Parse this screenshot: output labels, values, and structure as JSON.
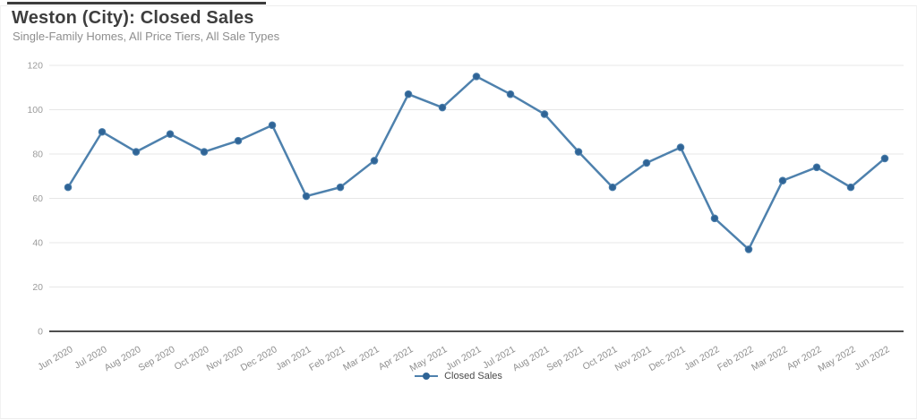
{
  "header": {
    "title": "Weston (City): Closed Sales",
    "subtitle": "Single-Family Homes, All Price Tiers, All Sale Types"
  },
  "legend": {
    "items": [
      {
        "label": "Closed Sales",
        "color": "#4e81ad",
        "marker_color": "#2f6496"
      }
    ]
  },
  "chart_data": {
    "type": "line",
    "title": "Weston (City): Closed Sales",
    "subtitle": "Single-Family Homes, All Price Tiers, All Sale Types",
    "categories": [
      "Jun 2020",
      "Jul 2020",
      "Aug 2020",
      "Sep 2020",
      "Oct 2020",
      "Nov 2020",
      "Dec 2020",
      "Jan 2021",
      "Feb 2021",
      "Mar 2021",
      "Apr 2021",
      "May 2021",
      "Jun 2021",
      "Jul 2021",
      "Aug 2021",
      "Sep 2021",
      "Oct 2021",
      "Nov 2021",
      "Dec 2021",
      "Jan 2022",
      "Feb 2022",
      "Mar 2022",
      "Apr 2022",
      "May 2022",
      "Jun 2022"
    ],
    "series": [
      {
        "name": "Closed Sales",
        "values": [
          65,
          90,
          81,
          89,
          81,
          86,
          93,
          61,
          65,
          77,
          107,
          101,
          115,
          107,
          98,
          81,
          65,
          76,
          83,
          51,
          37,
          68,
          74,
          65,
          78
        ]
      }
    ],
    "ylim": [
      0,
      120
    ],
    "yticks": [
      0,
      20,
      40,
      60,
      80,
      100,
      120
    ],
    "grid": true,
    "legend_position": "bottom",
    "colors": {
      "line": "#4e81ad",
      "marker": "#2f6496",
      "grid": "#e7e7e7",
      "axis": "#4f4f4f",
      "y_tick_label": "#9b9b9b",
      "x_tick_label": "#8f8f8f"
    }
  }
}
